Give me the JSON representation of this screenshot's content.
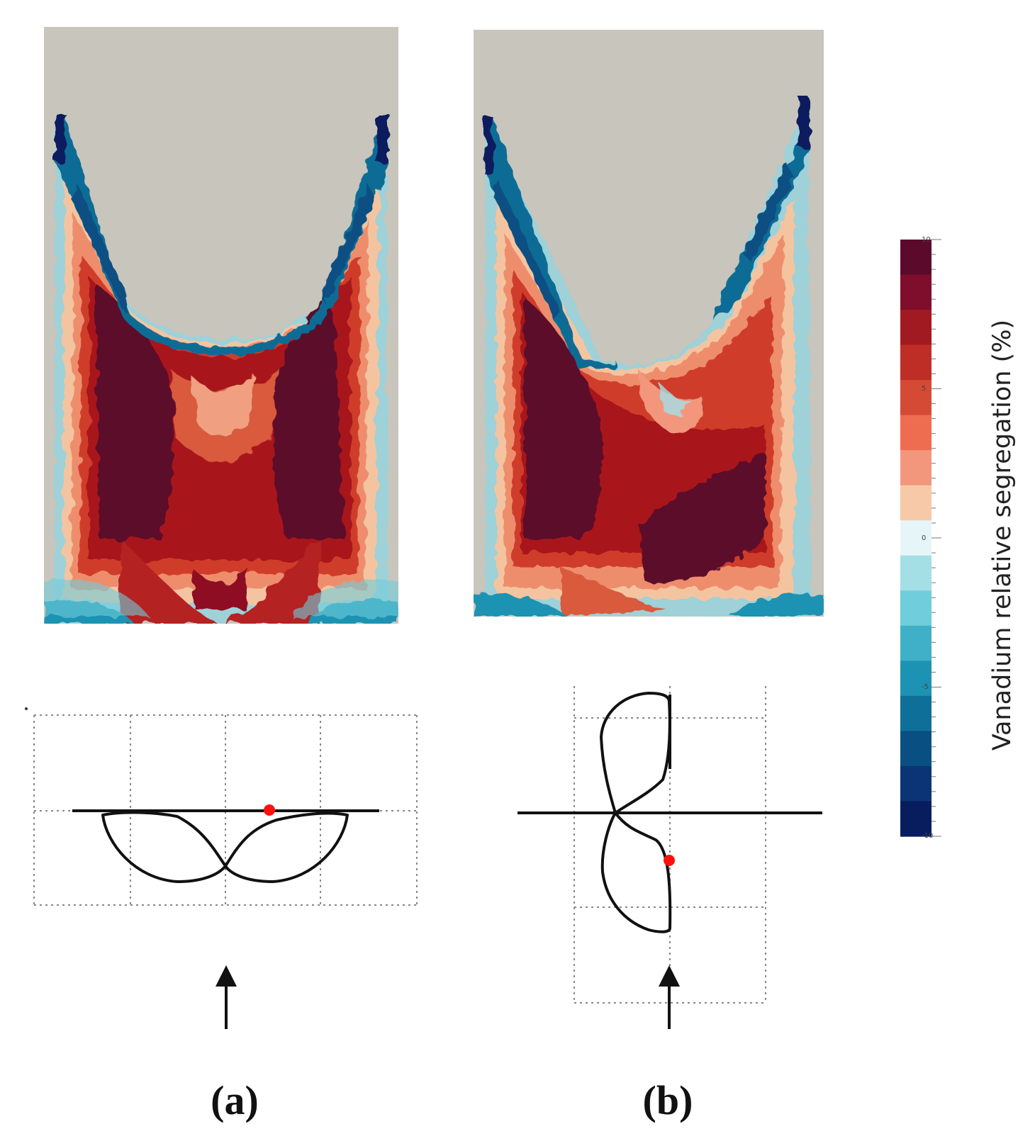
{
  "figure": {
    "panels": [
      {
        "id": "a",
        "label": "(a)"
      },
      {
        "id": "b",
        "label": "(b)"
      }
    ],
    "colorbar": {
      "title": "Vanadium relative segregation (%)",
      "ticks": [
        "10",
        "5",
        "0",
        "-5",
        "-10"
      ],
      "range": [
        -10,
        10
      ],
      "colors": [
        "#5c0a2c",
        "#7e0e2c",
        "#a11a22",
        "#bf2e26",
        "#d54a34",
        "#ee6d50",
        "#f3977c",
        "#f8c9a8",
        "#e6f6f8",
        "#a4dfe6",
        "#70cddb",
        "#3fb0c7",
        "#1c93b2",
        "#0e7099",
        "#0a4f82",
        "#0a3475",
        "#071d5e"
      ]
    },
    "palette": {
      "background_gray": "#c8c5bc",
      "marker_red": "#ff1010",
      "line_black": "#111111"
    }
  }
}
